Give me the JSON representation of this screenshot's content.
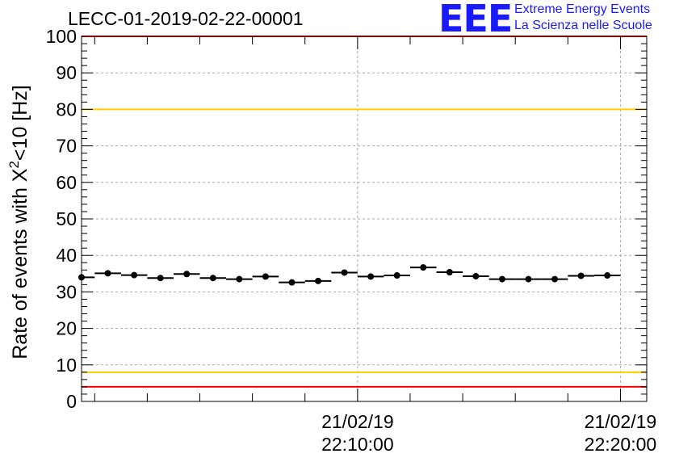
{
  "header": {
    "run_id": "LECC-01-2019-02-22-00001",
    "logo_text": "EEE",
    "logo_line1": "Extreme Energy Events",
    "logo_line2": "La Scienza nelle Scuole"
  },
  "colors": {
    "upper_threshold": "#ffcc00",
    "lower_threshold": "#ffcc00",
    "limit_line": "#ff0000",
    "points": "#000000",
    "grid": "#aaaaaa",
    "logo": "#1a1aff"
  },
  "chart_data": {
    "type": "scatter",
    "title": "LECC-01-2019-02-22-00001",
    "ylabel_main": "Rate of events with X",
    "ylabel_sup": "2",
    "ylabel_tail": "<10 [Hz]",
    "xlabel": "",
    "ylim": [
      0,
      100
    ],
    "y_ticks": [
      0,
      10,
      20,
      30,
      40,
      50,
      60,
      70,
      80,
      90,
      100
    ],
    "x_domain_min": [
      "21/02/19",
      "21:59:30"
    ],
    "x_domain_max": [
      "21/02/19",
      "22:21:00"
    ],
    "x_tick_labels": [
      {
        "date": "21/02/19",
        "time": "22:10:00"
      },
      {
        "date": "21/02/19",
        "time": "22:20:00"
      }
    ],
    "grid": true,
    "reference_lines": [
      {
        "y": 100,
        "color": "#ff0000"
      },
      {
        "y": 80,
        "color": "#ffcc00"
      },
      {
        "y": 8,
        "color": "#ffcc00"
      },
      {
        "y": 4,
        "color": "#ff0000"
      }
    ],
    "points": [
      {
        "x": "21:59:30",
        "y": 34.0
      },
      {
        "x": "22:00:30",
        "y": 35.1
      },
      {
        "x": "22:01:30",
        "y": 34.6
      },
      {
        "x": "22:02:30",
        "y": 33.8
      },
      {
        "x": "22:03:30",
        "y": 34.9
      },
      {
        "x": "22:04:30",
        "y": 33.8
      },
      {
        "x": "22:05:30",
        "y": 33.5
      },
      {
        "x": "22:06:30",
        "y": 34.2
      },
      {
        "x": "22:07:30",
        "y": 32.6
      },
      {
        "x": "22:08:30",
        "y": 33.0
      },
      {
        "x": "22:09:30",
        "y": 35.3
      },
      {
        "x": "22:10:30",
        "y": 34.2
      },
      {
        "x": "22:11:30",
        "y": 34.5
      },
      {
        "x": "22:12:30",
        "y": 36.7
      },
      {
        "x": "22:13:30",
        "y": 35.4
      },
      {
        "x": "22:14:30",
        "y": 34.3
      },
      {
        "x": "22:15:30",
        "y": 33.5
      },
      {
        "x": "22:16:30",
        "y": 33.5
      },
      {
        "x": "22:17:30",
        "y": 33.5
      },
      {
        "x": "22:18:30",
        "y": 34.4
      },
      {
        "x": "22:19:30",
        "y": 34.5
      }
    ]
  }
}
